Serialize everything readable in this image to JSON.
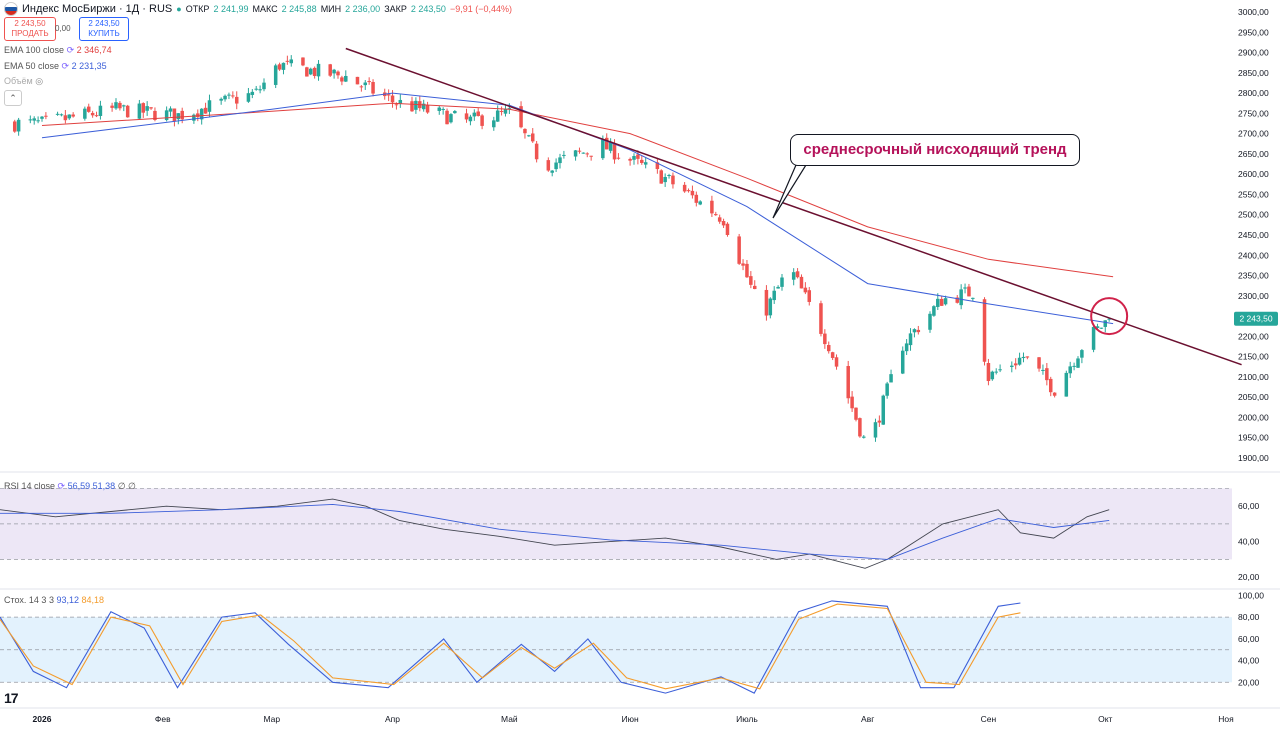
{
  "header": {
    "title": "Индекс МосБиржи · 1Д · RUS",
    "ohlc_labels": {
      "open": "ОТКР",
      "high": "МАКС",
      "low": "МИН",
      "close": "ЗАКР"
    },
    "open": "2 241,99",
    "high": "2 245,88",
    "low": "2 236,00",
    "close": "2 243,50",
    "change": "−9,91 (−0,44%)",
    "flag_colors": [
      "#ffffff",
      "#1c57a5",
      "#d52b1e"
    ]
  },
  "trade": {
    "sell_price": "2 243,50",
    "sell_label": "ПРОДАТЬ",
    "spread": "0,00",
    "buy_price": "2 243,50",
    "buy_label": "КУПИТЬ"
  },
  "indicators": {
    "ema100_label": "EMA 100 close",
    "ema100_value": "2 346,74",
    "ema50_label": "EMA 50 close",
    "ema50_value": "2 231,35",
    "volume_label": "Объём",
    "rsi_label": "RSI 14 close",
    "rsi_value1": "56,59",
    "rsi_value2": "51,38",
    "rsi_extra": "∅ ∅",
    "stoch_label": "Стох. 14 3 3",
    "stoch_k": "93,12",
    "stoch_d": "84,18"
  },
  "annotation": {
    "text": "среднесрочный нисходящий тренд"
  },
  "logo": "17",
  "colors": {
    "up": "#26a69a",
    "down": "#ef5350",
    "ema100": "#e0403f",
    "ema50": "#3c5fd8",
    "trendline": "#6b1030",
    "rsi_band": "#ede7f6",
    "stoch_band": "#e3f2fd",
    "stoch_k": "#3c5fd8",
    "stoch_d": "#f49c2c",
    "highlight_circle": "#d0224a"
  },
  "chart_data": [
    {
      "type": "candlestick",
      "title": "Индекс МосБиржи",
      "y_ticks": [
        "3000,00",
        "2950,00",
        "2900,00",
        "2850,00",
        "2800,00",
        "2750,00",
        "2700,00",
        "2650,00",
        "2600,00",
        "2550,00",
        "2500,00",
        "2450,00",
        "2400,00",
        "2350,00",
        "2300,00",
        "2250,00",
        "2200,00",
        "2150,00",
        "2100,00",
        "2050,00",
        "2000,00",
        "1950,00",
        "1900,00"
      ],
      "ylim": [
        1890,
        3005
      ],
      "x_ticks": [
        "2026",
        "Фев",
        "Мар",
        "Апр",
        "Май",
        "Июн",
        "Июль",
        "Авг",
        "Сен",
        "Окт",
        "Ноя"
      ],
      "last_price_label": "2 243,50",
      "key_points": [
        {
          "date": "2026-01-01",
          "value": 2725
        },
        {
          "date": "2026-01-20",
          "value": 2760
        },
        {
          "date": "2026-02-05",
          "value": 2745
        },
        {
          "date": "2026-02-25",
          "value": 2800
        },
        {
          "date": "2026-03-03",
          "value": 2870
        },
        {
          "date": "2026-03-20",
          "value": 2840
        },
        {
          "date": "2026-04-01",
          "value": 2780
        },
        {
          "date": "2026-04-20",
          "value": 2730
        },
        {
          "date": "2026-05-01",
          "value": 2750
        },
        {
          "date": "2026-05-10",
          "value": 2620
        },
        {
          "date": "2026-05-25",
          "value": 2670
        },
        {
          "date": "2026-06-10",
          "value": 2590
        },
        {
          "date": "2026-06-25",
          "value": 2490
        },
        {
          "date": "2026-07-05",
          "value": 2250
        },
        {
          "date": "2026-07-12",
          "value": 2370
        },
        {
          "date": "2026-07-22",
          "value": 2180
        },
        {
          "date": "2026-08-01",
          "value": 1920
        },
        {
          "date": "2026-08-10",
          "value": 2180
        },
        {
          "date": "2026-08-20",
          "value": 2290
        },
        {
          "date": "2026-08-28",
          "value": 2310
        },
        {
          "date": "2026-09-01",
          "value": 2100
        },
        {
          "date": "2026-09-10",
          "value": 2150
        },
        {
          "date": "2026-09-18",
          "value": 2070
        },
        {
          "date": "2026-09-26",
          "value": 2190
        },
        {
          "date": "2026-10-02",
          "value": 2243.5
        }
      ],
      "ema100": [
        {
          "date": "2026-01-01",
          "value": 2720
        },
        {
          "date": "2026-03-01",
          "value": 2755
        },
        {
          "date": "2026-04-01",
          "value": 2775
        },
        {
          "date": "2026-05-01",
          "value": 2760
        },
        {
          "date": "2026-06-01",
          "value": 2700
        },
        {
          "date": "2026-07-01",
          "value": 2590
        },
        {
          "date": "2026-08-01",
          "value": 2470
        },
        {
          "date": "2026-09-01",
          "value": 2390
        },
        {
          "date": "2026-10-03",
          "value": 2346.74
        }
      ],
      "ema50": [
        {
          "date": "2026-01-01",
          "value": 2690
        },
        {
          "date": "2026-03-01",
          "value": 2760
        },
        {
          "date": "2026-04-01",
          "value": 2800
        },
        {
          "date": "2026-05-01",
          "value": 2770
        },
        {
          "date": "2026-06-01",
          "value": 2660
        },
        {
          "date": "2026-07-01",
          "value": 2520
        },
        {
          "date": "2026-08-01",
          "value": 2330
        },
        {
          "date": "2026-09-01",
          "value": 2280
        },
        {
          "date": "2026-10-03",
          "value": 2231.35
        }
      ],
      "trendline": [
        {
          "date": "2026-03-20",
          "value": 2910
        },
        {
          "date": "2026-11-05",
          "value": 2130
        }
      ]
    },
    {
      "type": "line",
      "title": "RSI 14 close",
      "y_ticks": [
        "60,00",
        "40,00",
        "20,00"
      ],
      "ylim": [
        15,
        77
      ],
      "bands": [
        30,
        70
      ],
      "series": [
        {
          "name": "RSI",
          "points": [
            [
              0,
              58
            ],
            [
              0.05,
              54
            ],
            [
              0.1,
              57
            ],
            [
              0.15,
              60
            ],
            [
              0.2,
              58
            ],
            [
              0.25,
              60
            ],
            [
              0.3,
              64
            ],
            [
              0.33,
              60
            ],
            [
              0.36,
              52
            ],
            [
              0.4,
              47
            ],
            [
              0.45,
              43
            ],
            [
              0.5,
              38
            ],
            [
              0.55,
              40
            ],
            [
              0.6,
              42
            ],
            [
              0.65,
              37
            ],
            [
              0.7,
              30
            ],
            [
              0.73,
              33
            ],
            [
              0.78,
              25
            ],
            [
              0.8,
              30
            ],
            [
              0.85,
              50
            ],
            [
              0.9,
              58
            ],
            [
              0.92,
              45
            ],
            [
              0.95,
              42
            ],
            [
              0.98,
              54
            ],
            [
              1.0,
              58
            ]
          ]
        },
        {
          "name": "MA",
          "points": [
            [
              0,
              56
            ],
            [
              0.1,
              56
            ],
            [
              0.2,
              58
            ],
            [
              0.3,
              61
            ],
            [
              0.36,
              57
            ],
            [
              0.45,
              47
            ],
            [
              0.55,
              41
            ],
            [
              0.65,
              38
            ],
            [
              0.73,
              33
            ],
            [
              0.8,
              30
            ],
            [
              0.85,
              42
            ],
            [
              0.9,
              53
            ],
            [
              0.95,
              48
            ],
            [
              1.0,
              52
            ]
          ]
        }
      ]
    },
    {
      "type": "line",
      "title": "Стох. 14 3 3",
      "y_ticks": [
        "100,00",
        "80,00",
        "60,00",
        "40,00",
        "20,00"
      ],
      "ylim": [
        0,
        105
      ],
      "bands": [
        20,
        50,
        80
      ],
      "series": [
        {
          "name": "%K",
          "points": [
            [
              0,
              80
            ],
            [
              0.03,
              30
            ],
            [
              0.06,
              15
            ],
            [
              0.1,
              85
            ],
            [
              0.13,
              70
            ],
            [
              0.16,
              15
            ],
            [
              0.2,
              80
            ],
            [
              0.23,
              84
            ],
            [
              0.26,
              55
            ],
            [
              0.3,
              20
            ],
            [
              0.35,
              15
            ],
            [
              0.4,
              60
            ],
            [
              0.43,
              20
            ],
            [
              0.47,
              55
            ],
            [
              0.5,
              30
            ],
            [
              0.53,
              60
            ],
            [
              0.56,
              20
            ],
            [
              0.6,
              10
            ],
            [
              0.65,
              25
            ],
            [
              0.68,
              10
            ],
            [
              0.72,
              85
            ],
            [
              0.75,
              95
            ],
            [
              0.8,
              90
            ],
            [
              0.83,
              15
            ],
            [
              0.86,
              15
            ],
            [
              0.9,
              90
            ],
            [
              0.92,
              93
            ]
          ]
        },
        {
          "name": "%D",
          "points": [
            [
              0,
              78
            ],
            [
              0.03,
              35
            ],
            [
              0.065,
              18
            ],
            [
              0.1,
              80
            ],
            [
              0.135,
              72
            ],
            [
              0.165,
              18
            ],
            [
              0.2,
              76
            ],
            [
              0.235,
              82
            ],
            [
              0.265,
              58
            ],
            [
              0.3,
              24
            ],
            [
              0.355,
              18
            ],
            [
              0.4,
              56
            ],
            [
              0.435,
              24
            ],
            [
              0.47,
              52
            ],
            [
              0.5,
              33
            ],
            [
              0.535,
              56
            ],
            [
              0.565,
              24
            ],
            [
              0.6,
              14
            ],
            [
              0.65,
              24
            ],
            [
              0.685,
              14
            ],
            [
              0.72,
              78
            ],
            [
              0.755,
              92
            ],
            [
              0.8,
              88
            ],
            [
              0.835,
              20
            ],
            [
              0.865,
              18
            ],
            [
              0.9,
              80
            ],
            [
              0.92,
              84
            ]
          ]
        }
      ]
    }
  ]
}
